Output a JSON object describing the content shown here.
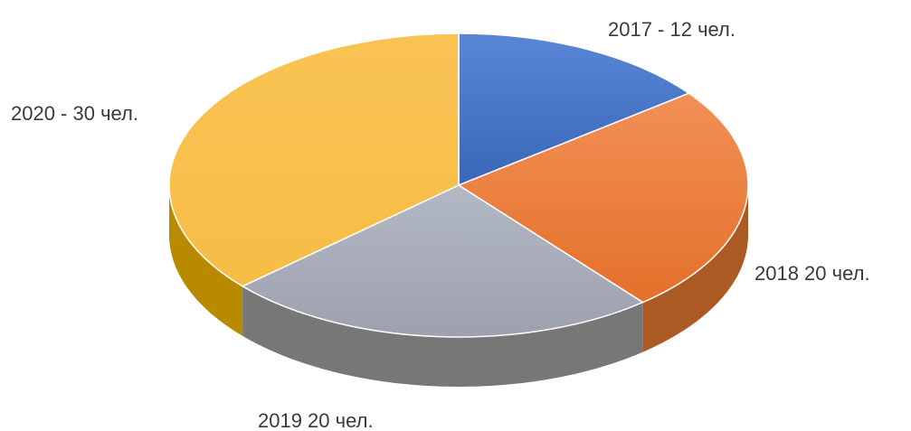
{
  "chart_data": {
    "type": "pie",
    "style": "3d",
    "categories": [
      "2017",
      "2018",
      "2019",
      "2020"
    ],
    "values": [
      12,
      20,
      20,
      30
    ],
    "labels": [
      "2017 - 12 чел.",
      "2018 20 чел.",
      "2019 20 чел.",
      "2020 - 30 чел."
    ],
    "colors": [
      "#4472c4",
      "#ed7d31",
      "#a5a5a5",
      "#ffc000"
    ],
    "title": "",
    "legend": "none"
  }
}
